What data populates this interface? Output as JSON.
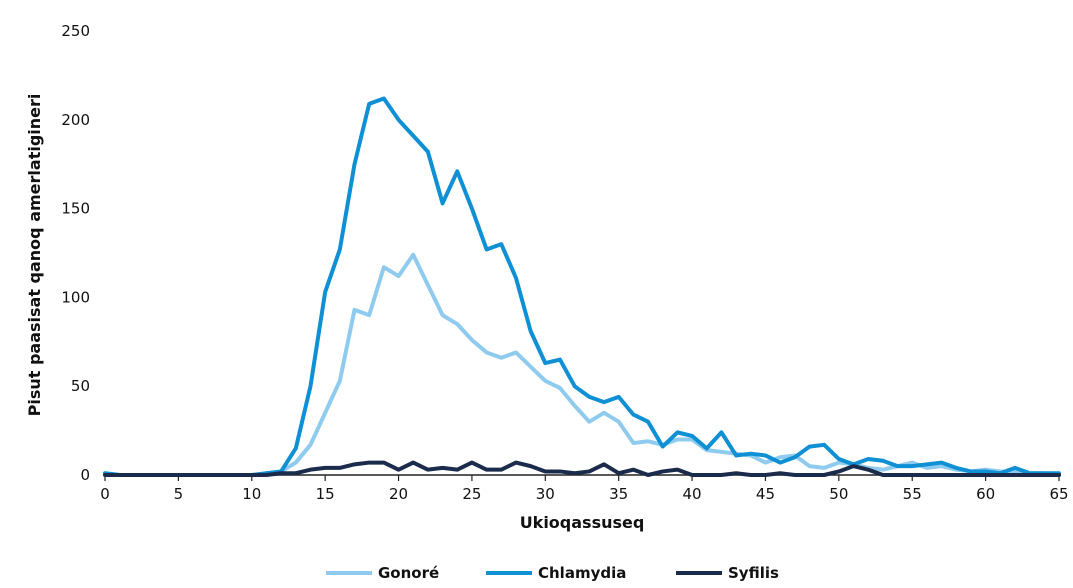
{
  "chart_data": {
    "type": "line",
    "xlabel": "Ukioqassuseq",
    "ylabel": "Pisut paasisat qanoq amerlatigineri",
    "xlim": [
      0,
      65
    ],
    "ylim": [
      0,
      250
    ],
    "x_ticks": [
      "0",
      "5",
      "10",
      "15",
      "20",
      "25",
      "30",
      "35",
      "40",
      "45",
      "50",
      "55",
      "60",
      "65"
    ],
    "y_ticks": [
      "0",
      "50",
      "100",
      "150",
      "200",
      "250"
    ],
    "grid": false,
    "legend_position": "bottom",
    "x": [
      0,
      1,
      2,
      3,
      4,
      5,
      6,
      7,
      8,
      9,
      10,
      11,
      12,
      13,
      14,
      15,
      16,
      17,
      18,
      19,
      20,
      21,
      22,
      23,
      24,
      25,
      26,
      27,
      28,
      29,
      30,
      31,
      32,
      33,
      34,
      35,
      36,
      37,
      38,
      39,
      40,
      41,
      42,
      43,
      44,
      45,
      46,
      47,
      48,
      49,
      50,
      51,
      52,
      53,
      54,
      55,
      56,
      57,
      58,
      59,
      60,
      61,
      62,
      63,
      64,
      65
    ],
    "series": [
      {
        "name": "Gonoré",
        "color": "#8fcbef",
        "values": [
          1,
          0,
          0,
          0,
          0,
          0,
          0,
          0,
          0,
          0,
          0,
          1,
          2,
          7,
          17,
          35,
          53,
          93,
          90,
          117,
          112,
          124,
          107,
          90,
          85,
          76,
          69,
          66,
          69,
          61,
          53,
          49,
          39,
          30,
          35,
          30,
          18,
          19,
          17,
          20,
          20,
          14,
          13,
          12,
          11,
          7,
          10,
          11,
          5,
          4,
          7,
          6,
          4,
          3,
          5,
          7,
          4,
          5,
          3,
          2,
          3,
          2,
          2,
          1,
          1,
          0
        ]
      },
      {
        "name": "Chlamydia",
        "color": "#0f8fd4",
        "values": [
          1,
          0,
          0,
          0,
          0,
          0,
          0,
          0,
          0,
          0,
          0,
          1,
          2,
          15,
          50,
          103,
          127,
          175,
          209,
          212,
          200,
          191,
          182,
          153,
          171,
          150,
          127,
          130,
          111,
          81,
          63,
          65,
          50,
          44,
          41,
          44,
          34,
          30,
          16,
          24,
          22,
          15,
          24,
          11,
          12,
          11,
          7,
          10,
          16,
          17,
          9,
          6,
          9,
          8,
          5,
          5,
          6,
          7,
          4,
          2,
          2,
          1,
          4,
          1,
          1,
          1
        ]
      },
      {
        "name": "Syfilis",
        "color": "#1b2b4b",
        "values": [
          0,
          0,
          0,
          0,
          0,
          0,
          0,
          0,
          0,
          0,
          0,
          0,
          1,
          1,
          3,
          4,
          4,
          6,
          7,
          7,
          3,
          7,
          3,
          4,
          3,
          7,
          3,
          3,
          7,
          5,
          2,
          2,
          1,
          2,
          6,
          1,
          3,
          0,
          2,
          3,
          0,
          0,
          0,
          1,
          0,
          0,
          1,
          0,
          0,
          0,
          2,
          5,
          3,
          0,
          0,
          0,
          0,
          0,
          0,
          0,
          0,
          0,
          0,
          0,
          0,
          0
        ]
      }
    ]
  }
}
